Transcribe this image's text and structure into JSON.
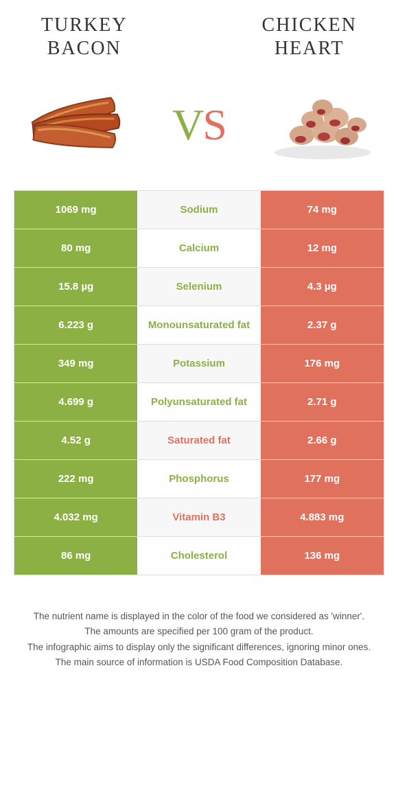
{
  "colors": {
    "left": "#8db044",
    "right": "#e0715c",
    "row_alt1": "#f7f7f7",
    "row_alt2": "#fefefe"
  },
  "leftFood": {
    "line1": "TURKEY",
    "line2": "BACON"
  },
  "rightFood": {
    "line1": "CHICKEN",
    "line2": "HEART"
  },
  "vs": {
    "v": "V",
    "s": "S"
  },
  "rows": [
    {
      "left": "1069 mg",
      "label": "Sodium",
      "right": "74 mg",
      "winner": "left"
    },
    {
      "left": "80 mg",
      "label": "Calcium",
      "right": "12 mg",
      "winner": "left"
    },
    {
      "left": "15.8 µg",
      "label": "Selenium",
      "right": "4.3 µg",
      "winner": "left"
    },
    {
      "left": "6.223 g",
      "label": "Monounsaturated fat",
      "right": "2.37 g",
      "winner": "left"
    },
    {
      "left": "349 mg",
      "label": "Potassium",
      "right": "176 mg",
      "winner": "left"
    },
    {
      "left": "4.699 g",
      "label": "Polyunsaturated fat",
      "right": "2.71 g",
      "winner": "left"
    },
    {
      "left": "4.52 g",
      "label": "Saturated fat",
      "right": "2.66 g",
      "winner": "right"
    },
    {
      "left": "222 mg",
      "label": "Phosphorus",
      "right": "177 mg",
      "winner": "left"
    },
    {
      "left": "4.032 mg",
      "label": "Vitamin B3",
      "right": "4.883 mg",
      "winner": "right"
    },
    {
      "left": "86 mg",
      "label": "Cholesterol",
      "right": "136 mg",
      "winner": "left"
    }
  ],
  "footer": {
    "p1": "The nutrient name is displayed in the color of the food we considered as 'winner'.",
    "p2": "The amounts are specified per 100 gram of the product.",
    "p3": "The infographic aims to display only the significant differences, ignoring minor ones.",
    "p4": "The main source of information is USDA Food Composition Database."
  }
}
